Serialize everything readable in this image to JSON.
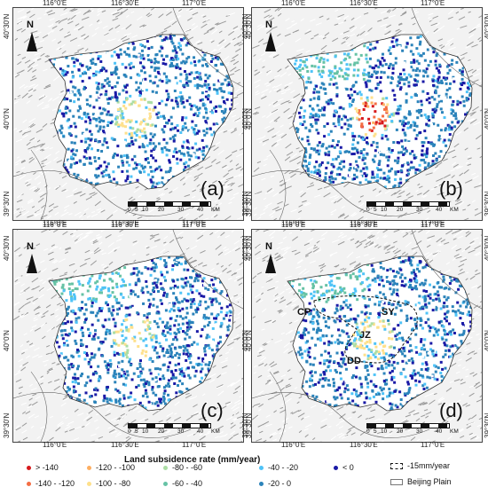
{
  "panels": [
    {
      "id": "a",
      "label": "(a)",
      "x_ticks": [
        "116°0'E",
        "116°30'E",
        "117°0'E"
      ],
      "y_ticks": [
        "40°30'N",
        "40°0'N",
        "39°30'N"
      ]
    },
    {
      "id": "b",
      "label": "(b)",
      "x_ticks": [
        "116°0'E",
        "116°30'E",
        "117°0'E"
      ],
      "y_ticks": [
        "40°30'N",
        "40°0'N",
        "39°30'N"
      ]
    },
    {
      "id": "c",
      "label": "(c)",
      "x_ticks": [
        "116°0'E",
        "116°30'E",
        "117°0'E"
      ],
      "y_ticks": [
        "40°30'N",
        "40°0'N",
        "39°30'N"
      ]
    },
    {
      "id": "d",
      "label": "(d)",
      "x_ticks": [
        "116°0'E",
        "116°30'E",
        "117°0'E"
      ],
      "y_ticks": [
        "40°30'N",
        "40°0'N",
        "39°30'N"
      ]
    }
  ],
  "north_label": "N",
  "scale_bar": {
    "ticks": [
      "0",
      "5",
      "10",
      "20",
      "30",
      "40"
    ],
    "unit": "KM"
  },
  "regions": {
    "cp": "CP",
    "sy": "SY",
    "jz": "JZ",
    "dd": "DD"
  },
  "legend": {
    "title": "Land subsidence rate  (mm/year)",
    "items": [
      {
        "label": "> -140",
        "color": "#d7191c"
      },
      {
        "label": "-140 - -120",
        "color": "#f46d43"
      },
      {
        "label": "-120 - -100",
        "color": "#fdae61"
      },
      {
        "label": "-100 - -80",
        "color": "#fee08b"
      },
      {
        "label": "-80 - -60",
        "color": "#abdda4"
      },
      {
        "label": "-60 - -40",
        "color": "#66c2a5"
      },
      {
        "label": "-40 - -20",
        "color": "#4fc3f7"
      },
      {
        "label": "-20 - 0",
        "color": "#2b83ba"
      },
      {
        "label": "< 0",
        "color": "#1a1aa6"
      }
    ],
    "boundaries": [
      {
        "label": "-15mm/year",
        "style": "dashed"
      },
      {
        "label": "Beijing Plain",
        "style": "solid"
      }
    ]
  }
}
